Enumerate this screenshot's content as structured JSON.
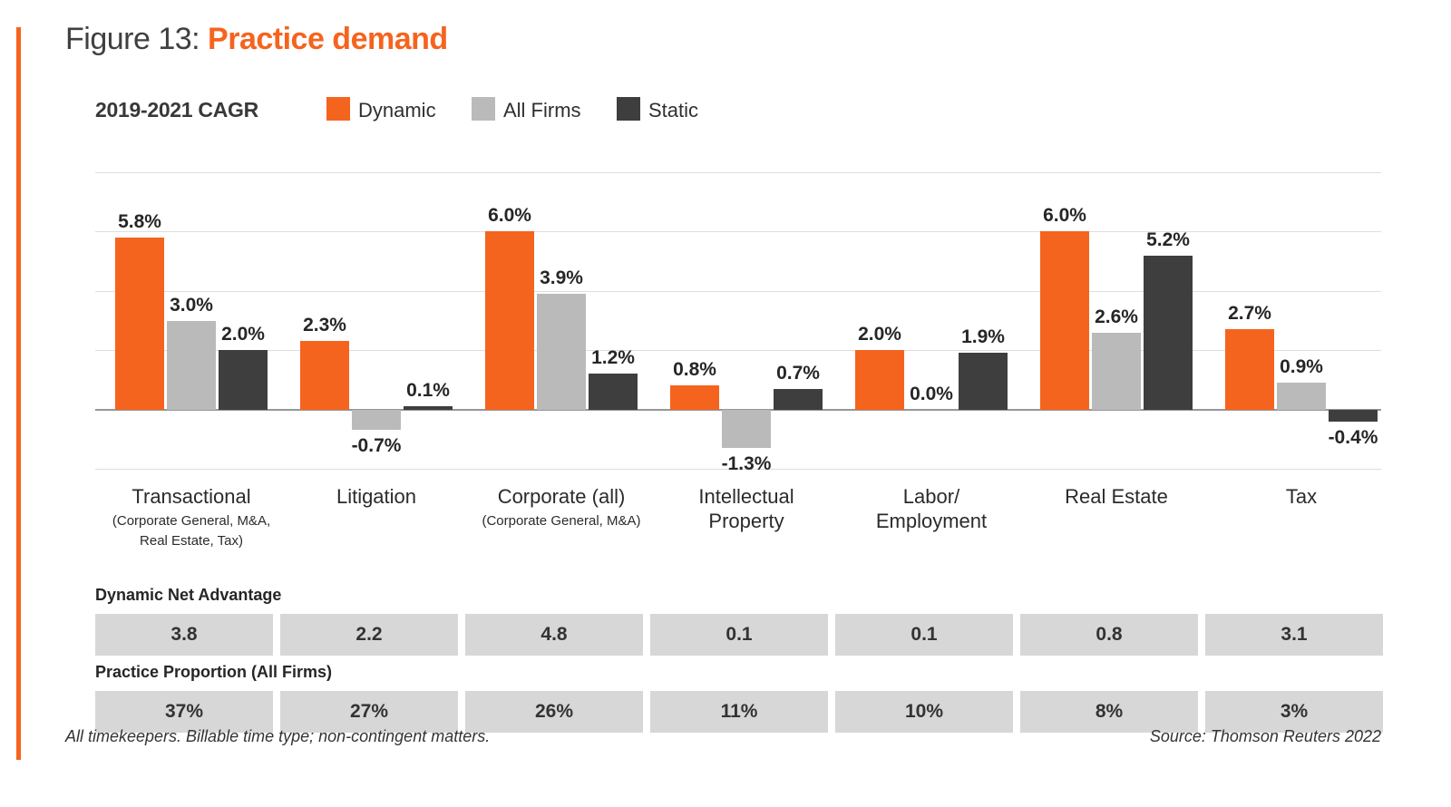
{
  "figure": {
    "label": "Figure 13:",
    "title": "Practice demand"
  },
  "legend": {
    "axis_label": "2019-2021 CAGR",
    "items": [
      {
        "name": "Dynamic",
        "color": "#F5641E"
      },
      {
        "name": "All Firms",
        "color": "#BABABA"
      },
      {
        "name": "Static",
        "color": "#3E3E3E"
      }
    ]
  },
  "chart_data": {
    "type": "bar",
    "title": "2019-2021 CAGR",
    "categories": [
      {
        "label": [
          "Transactional"
        ],
        "sublabel": [
          "(Corporate General, M&A,",
          "Real Estate, Tax)"
        ]
      },
      {
        "label": [
          "Litigation"
        ],
        "sublabel": []
      },
      {
        "label": [
          "Corporate (all)"
        ],
        "sublabel": [
          "(Corporate General, M&A)"
        ]
      },
      {
        "label": [
          "Intellectual",
          "Property"
        ],
        "sublabel": []
      },
      {
        "label": [
          "Labor/",
          "Employment"
        ],
        "sublabel": []
      },
      {
        "label": [
          "Real Estate"
        ],
        "sublabel": []
      },
      {
        "label": [
          "Tax"
        ],
        "sublabel": []
      }
    ],
    "series": [
      {
        "name": "Dynamic",
        "color": "#F5641E",
        "values": [
          5.8,
          2.3,
          6.0,
          0.8,
          2.0,
          6.0,
          2.7
        ]
      },
      {
        "name": "All Firms",
        "color": "#BABABA",
        "values": [
          3.0,
          -0.7,
          3.9,
          -1.3,
          0.0,
          2.6,
          0.9
        ]
      },
      {
        "name": "Static",
        "color": "#3E3E3E",
        "values": [
          2.0,
          0.1,
          1.2,
          0.7,
          1.9,
          5.2,
          -0.4
        ]
      }
    ],
    "value_suffix": "%",
    "ylim": [
      -2,
      8
    ],
    "gridlines": [
      8,
      6,
      4,
      2,
      0,
      -2
    ],
    "grid": true,
    "legend_position": "top"
  },
  "tables": [
    {
      "heading": "Dynamic Net Advantage",
      "values": [
        "3.8",
        "2.2",
        "4.8",
        "0.1",
        "0.1",
        "0.8",
        "3.1"
      ]
    },
    {
      "heading": "Practice Proportion (All Firms)",
      "values": [
        "37%",
        "27%",
        "26%",
        "11%",
        "10%",
        "8%",
        "3%"
      ]
    }
  ],
  "footer": {
    "note": "All timekeepers. Billable time type; non-contingent matters.",
    "source": "Source: Thomson Reuters 2022"
  },
  "colors": {
    "accent": "#F5641E",
    "grid": "#DEDEDE",
    "zero_axis": "#979797",
    "table_box": "#D7D7D7",
    "text_dark": "#2F2F2F"
  }
}
